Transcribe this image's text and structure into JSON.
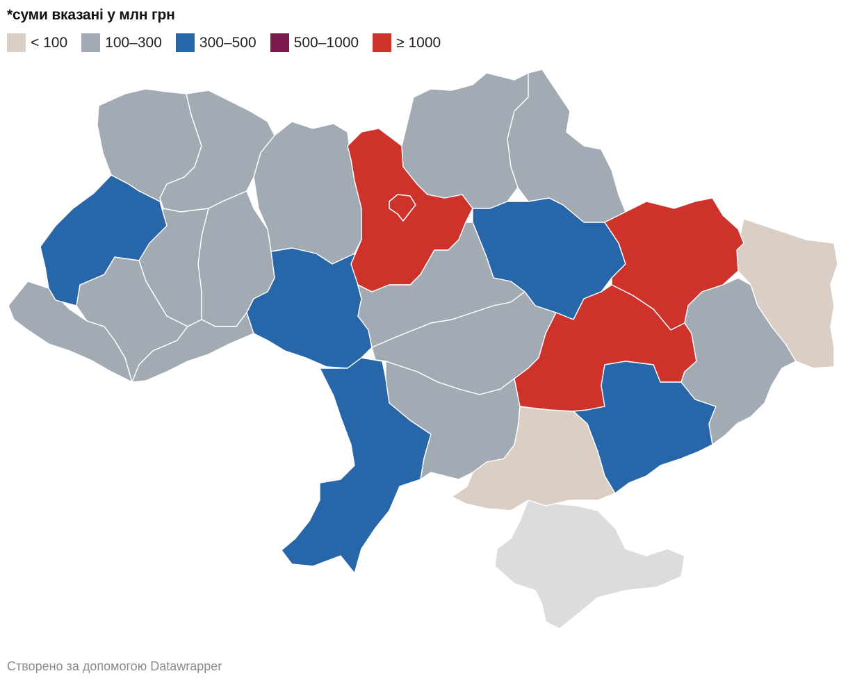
{
  "note": "*суми вказані у млн грн",
  "legend": [
    {
      "label": "< 100",
      "color": "#dbcfc5"
    },
    {
      "label": "100–300",
      "color": "#a2abb4"
    },
    {
      "label": "300–500",
      "color": "#2766a9"
    },
    {
      "label": "500–1000",
      "color": "#7a1a4c"
    },
    {
      "label": "≥ 1000",
      "color": "#cd322b"
    }
  ],
  "colors": {
    "no_data": "#dcdcdc",
    "border": "#ffffff"
  },
  "credit": "Створено за допомогою Datawrapper"
}
